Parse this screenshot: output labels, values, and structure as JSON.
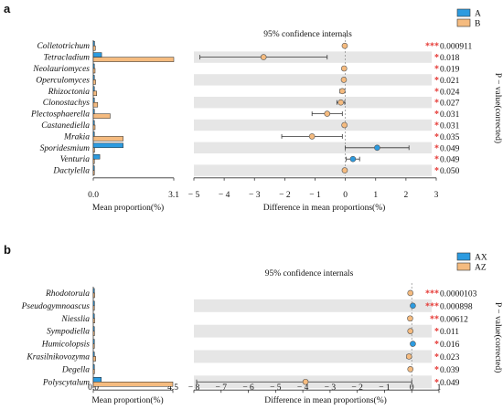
{
  "colors": {
    "A": "#2c9be0",
    "B": "#f5bb7f",
    "band": "#e6e6e6",
    "star": "#e53935",
    "dot_edge": "#555555"
  },
  "chart_data": [
    {
      "type": "bar",
      "panel_label": "a",
      "ci_title": "95% confidence internals",
      "xlabel_left": "Mean proportion(%)",
      "xlabel_right": "Difference in mean proportions(%)",
      "ylabel_right": "P − value(corrected)",
      "legend": [
        {
          "name": "A",
          "color": "#2c9be0"
        },
        {
          "name": "B",
          "color": "#f5bb7f"
        }
      ],
      "left_xlim": [
        0,
        3.1
      ],
      "left_ticks": [
        "0.0",
        "3.1"
      ],
      "right_xlim": [
        -5,
        3
      ],
      "right_ticks": [
        "− 5",
        "− 4",
        "− 3",
        "− 2",
        "− 1",
        "0",
        "1",
        "2",
        "3"
      ],
      "rows": [
        {
          "taxon": "Colletotrichum",
          "A": 0.05,
          "B": 0.08,
          "diff": -0.02,
          "lo": -0.05,
          "hi": 0.01,
          "stars": "***",
          "p": "0.000911",
          "color": "B"
        },
        {
          "taxon": "Tetracladium",
          "A": 0.32,
          "B": 3.1,
          "diff": -2.7,
          "lo": -4.8,
          "hi": -0.6,
          "stars": "*",
          "p": "0.018",
          "color": "B"
        },
        {
          "taxon": "Neolauriomyces",
          "A": 0.03,
          "B": 0.07,
          "diff": -0.04,
          "lo": -0.08,
          "hi": 0.0,
          "stars": "*",
          "p": "0.019",
          "color": "B"
        },
        {
          "taxon": "Operculomyces",
          "A": 0.03,
          "B": 0.09,
          "diff": -0.05,
          "lo": -0.1,
          "hi": -0.01,
          "stars": "*",
          "p": "0.021",
          "color": "B"
        },
        {
          "taxon": "Rhizoctonia",
          "A": 0.03,
          "B": 0.13,
          "diff": -0.1,
          "lo": -0.18,
          "hi": -0.02,
          "stars": "*",
          "p": "0.024",
          "color": "B"
        },
        {
          "taxon": "Clonostachys",
          "A": 0.04,
          "B": 0.17,
          "diff": -0.15,
          "lo": -0.28,
          "hi": -0.02,
          "stars": "*",
          "p": "0.027",
          "color": "B"
        },
        {
          "taxon": "Plectosphaerella",
          "A": 0.03,
          "B": 0.65,
          "diff": -0.6,
          "lo": -1.1,
          "hi": -0.1,
          "stars": "*",
          "p": "0.031",
          "color": "B"
        },
        {
          "taxon": "Castanediella",
          "A": 0.03,
          "B": 0.07,
          "diff": -0.03,
          "lo": -0.06,
          "hi": 0.0,
          "stars": "*",
          "p": "0.031",
          "color": "B"
        },
        {
          "taxon": "Mrakia",
          "A": 0.01,
          "B": 1.15,
          "diff": -1.1,
          "lo": -2.1,
          "hi": -0.1,
          "stars": "*",
          "p": "0.035",
          "color": "B"
        },
        {
          "taxon": "Sporidesmium",
          "A": 1.15,
          "B": 0.05,
          "diff": 1.05,
          "lo": 0.0,
          "hi": 2.1,
          "stars": "*",
          "p": "0.049",
          "color": "A"
        },
        {
          "taxon": "Venturia",
          "A": 0.25,
          "B": 0.01,
          "diff": 0.25,
          "lo": 0.03,
          "hi": 0.47,
          "stars": "*",
          "p": "0.049",
          "color": "A"
        },
        {
          "taxon": "Dactylella",
          "A": 0.02,
          "B": 0.04,
          "diff": -0.02,
          "lo": -0.04,
          "hi": 0.0,
          "stars": "*",
          "p": "0.050",
          "color": "B"
        }
      ]
    },
    {
      "type": "bar",
      "panel_label": "b",
      "ci_title": "95% confidence internals",
      "xlabel_left": "Mean proportion(%)",
      "xlabel_right": "Difference in mean proportions(%)",
      "ylabel_right": "P − value(corrected)",
      "legend": [
        {
          "name": "AX",
          "color": "#2c9be0"
        },
        {
          "name": "AZ",
          "color": "#f5bb7f"
        }
      ],
      "left_xlim": [
        0,
        4.5
      ],
      "left_ticks": [
        "0.0",
        "4.5"
      ],
      "right_xlim": [
        -8,
        1
      ],
      "right_ticks": [
        "− 8",
        "− 7",
        "− 6",
        "− 5",
        "− 4",
        "− 3",
        "− 2",
        "− 1",
        "0",
        "1"
      ],
      "rows": [
        {
          "taxon": "Rhodotorula",
          "A": 0.02,
          "B": 0.08,
          "diff": -0.05,
          "lo": -0.08,
          "hi": -0.02,
          "stars": "***",
          "p": "0.0000103",
          "color": "B"
        },
        {
          "taxon": "Pseudogymnoascus",
          "A": 0.07,
          "B": 0.01,
          "diff": 0.04,
          "lo": 0.02,
          "hi": 0.07,
          "stars": "***",
          "p": "0.000898",
          "color": "A"
        },
        {
          "taxon": "Niesslia",
          "A": 0.01,
          "B": 0.08,
          "diff": -0.06,
          "lo": -0.1,
          "hi": -0.03,
          "stars": "**",
          "p": "0.00612",
          "color": "B"
        },
        {
          "taxon": "Sympodiella",
          "A": 0.01,
          "B": 0.07,
          "diff": -0.05,
          "lo": -0.09,
          "hi": -0.02,
          "stars": "*",
          "p": "0.011",
          "color": "B"
        },
        {
          "taxon": "Humicolopsis",
          "A": 0.06,
          "B": 0.01,
          "diff": 0.04,
          "lo": 0.01,
          "hi": 0.07,
          "stars": "*",
          "p": "0.016",
          "color": "A"
        },
        {
          "taxon": "Krasilnikovozyma",
          "A": 0.02,
          "B": 0.14,
          "diff": -0.1,
          "lo": -0.18,
          "hi": -0.02,
          "stars": "*",
          "p": "0.023",
          "color": "B"
        },
        {
          "taxon": "Degella",
          "A": 0.01,
          "B": 0.07,
          "diff": -0.05,
          "lo": -0.09,
          "hi": -0.01,
          "stars": "*",
          "p": "0.039",
          "color": "B"
        },
        {
          "taxon": "Polyscytalum",
          "A": 0.45,
          "B": 4.5,
          "diff": -3.9,
          "lo": -7.9,
          "hi": 0.0,
          "stars": "*",
          "p": "0.049",
          "color": "B"
        }
      ]
    }
  ]
}
